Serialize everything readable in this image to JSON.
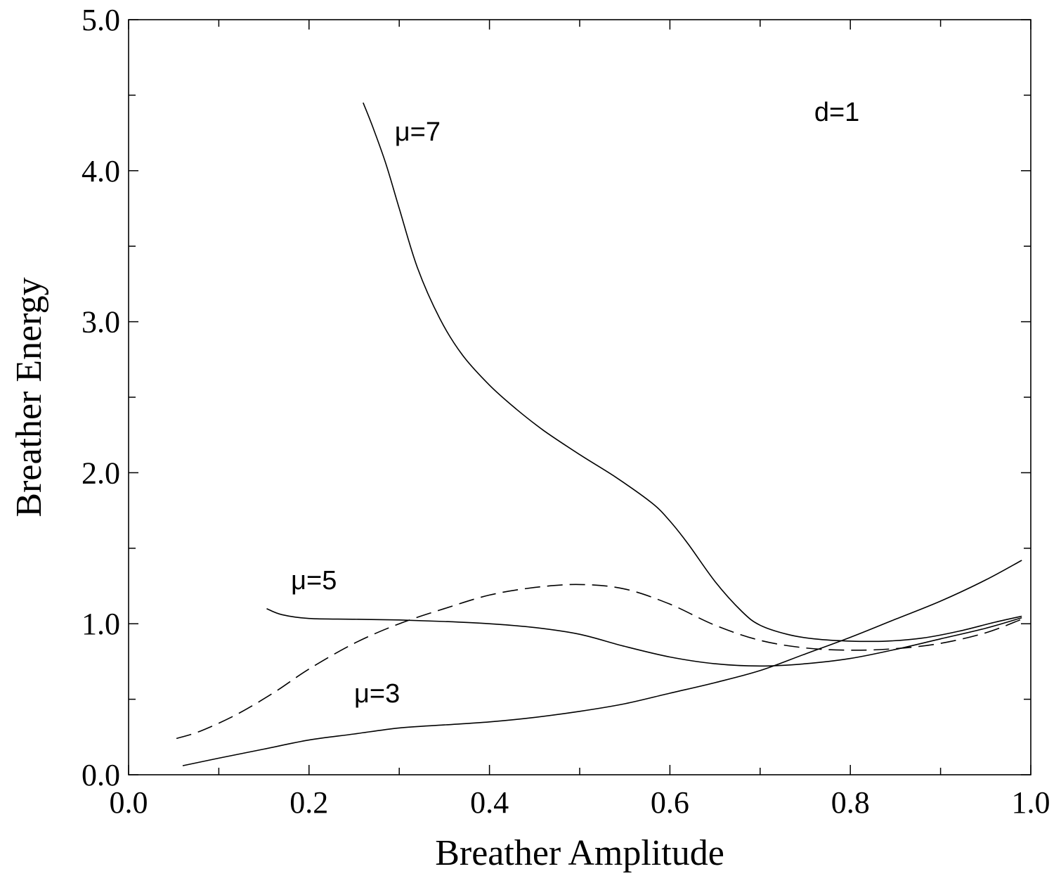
{
  "chart_data": {
    "type": "line",
    "title": "",
    "xlabel": "Breather Amplitude",
    "ylabel": "Breather Energy",
    "xlim": [
      0.0,
      1.0
    ],
    "ylim": [
      0.0,
      5.0
    ],
    "x_ticks": [
      "0.0",
      "0.2",
      "0.4",
      "0.6",
      "0.8",
      "1.0"
    ],
    "y_ticks": [
      "0.0",
      "1.0",
      "2.0",
      "3.0",
      "4.0",
      "5.0"
    ],
    "grid": false,
    "legend": "none",
    "series": [
      {
        "label_text": "μ=7",
        "line_style": "solid",
        "points": [
          [
            0.26,
            4.45
          ],
          [
            0.27,
            4.3
          ],
          [
            0.285,
            4.05
          ],
          [
            0.3,
            3.75
          ],
          [
            0.32,
            3.36
          ],
          [
            0.345,
            3.02
          ],
          [
            0.37,
            2.78
          ],
          [
            0.4,
            2.58
          ],
          [
            0.43,
            2.42
          ],
          [
            0.46,
            2.28
          ],
          [
            0.5,
            2.12
          ],
          [
            0.54,
            1.97
          ],
          [
            0.58,
            1.8
          ],
          [
            0.6,
            1.68
          ],
          [
            0.62,
            1.53
          ],
          [
            0.65,
            1.28
          ],
          [
            0.68,
            1.08
          ],
          [
            0.7,
            0.99
          ],
          [
            0.73,
            0.93
          ],
          [
            0.76,
            0.9
          ],
          [
            0.8,
            0.885
          ],
          [
            0.84,
            0.885
          ],
          [
            0.88,
            0.905
          ],
          [
            0.92,
            0.95
          ],
          [
            0.96,
            1.01
          ],
          [
            0.99,
            1.05
          ]
        ]
      },
      {
        "label_text": "μ=5",
        "line_style": "solid",
        "points": [
          [
            0.153,
            1.1
          ],
          [
            0.17,
            1.06
          ],
          [
            0.2,
            1.035
          ],
          [
            0.25,
            1.03
          ],
          [
            0.3,
            1.025
          ],
          [
            0.35,
            1.015
          ],
          [
            0.4,
            1.0
          ],
          [
            0.45,
            0.975
          ],
          [
            0.5,
            0.93
          ],
          [
            0.55,
            0.85
          ],
          [
            0.6,
            0.78
          ],
          [
            0.65,
            0.735
          ],
          [
            0.7,
            0.72
          ],
          [
            0.75,
            0.735
          ],
          [
            0.8,
            0.77
          ],
          [
            0.85,
            0.83
          ],
          [
            0.9,
            0.9
          ],
          [
            0.95,
            0.97
          ],
          [
            0.99,
            1.04
          ]
        ]
      },
      {
        "label_text": "",
        "line_style": "dashed",
        "points": [
          [
            0.053,
            0.24
          ],
          [
            0.08,
            0.29
          ],
          [
            0.12,
            0.4
          ],
          [
            0.16,
            0.54
          ],
          [
            0.2,
            0.7
          ],
          [
            0.25,
            0.87
          ],
          [
            0.3,
            1.0
          ],
          [
            0.35,
            1.1
          ],
          [
            0.4,
            1.19
          ],
          [
            0.45,
            1.24
          ],
          [
            0.5,
            1.26
          ],
          [
            0.55,
            1.23
          ],
          [
            0.6,
            1.13
          ],
          [
            0.65,
            0.99
          ],
          [
            0.7,
            0.89
          ],
          [
            0.75,
            0.84
          ],
          [
            0.8,
            0.825
          ],
          [
            0.85,
            0.835
          ],
          [
            0.9,
            0.87
          ],
          [
            0.95,
            0.94
          ],
          [
            0.99,
            1.03
          ]
        ]
      },
      {
        "label_text": "μ=3",
        "line_style": "solid",
        "points": [
          [
            0.06,
            0.06
          ],
          [
            0.1,
            0.11
          ],
          [
            0.15,
            0.17
          ],
          [
            0.2,
            0.23
          ],
          [
            0.25,
            0.27
          ],
          [
            0.3,
            0.31
          ],
          [
            0.35,
            0.33
          ],
          [
            0.4,
            0.35
          ],
          [
            0.45,
            0.38
          ],
          [
            0.5,
            0.42
          ],
          [
            0.55,
            0.47
          ],
          [
            0.6,
            0.54
          ],
          [
            0.65,
            0.61
          ],
          [
            0.7,
            0.69
          ],
          [
            0.75,
            0.8
          ],
          [
            0.8,
            0.91
          ],
          [
            0.85,
            1.03
          ],
          [
            0.9,
            1.15
          ],
          [
            0.95,
            1.29
          ],
          [
            0.99,
            1.42
          ]
        ]
      }
    ],
    "annotations": [
      {
        "text": "μ=7",
        "x": 0.295,
        "y": 4.2
      },
      {
        "text": "μ=5",
        "x": 0.18,
        "y": 1.23
      },
      {
        "text": "μ=3",
        "x": 0.25,
        "y": 0.48
      },
      {
        "text": "d=1",
        "x": 0.76,
        "y": 4.33
      }
    ]
  }
}
